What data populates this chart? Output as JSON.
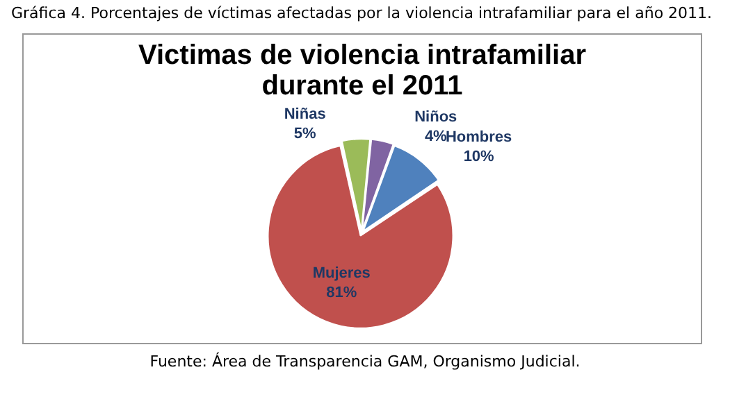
{
  "chart_data": {
    "type": "pie",
    "title": "Victimas de violencia intrafamiliar durante el 2011",
    "categories": [
      "Hombres",
      "Mujeres",
      "Niñas",
      "Niños"
    ],
    "values": [
      10,
      81,
      5,
      4
    ],
    "value_labels": [
      "10%",
      "81%",
      "5%",
      "4%"
    ],
    "colors": [
      "#4f81bd",
      "#c0504d",
      "#9bbb59",
      "#8064a2"
    ],
    "legend": false,
    "annotations": [
      "Gráfica 4. Porcentajes de víctimas afectadas por la violencia intrafamiliar para el año 2011.",
      "Fuente: Área de Transparencia GAM, Organismo Judicial."
    ]
  }
}
